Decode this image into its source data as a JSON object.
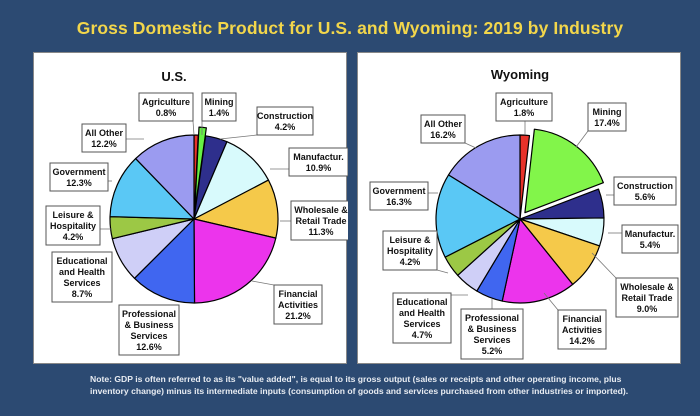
{
  "title": "Gross Domestic Product for U.S. and Wyoming: 2019 by Industry",
  "note_lines": [
    "Note: GDP is often referred to as its \"value added\", is equal to its gross output (sales or receipts and other operating income, plus",
    "inventory change) minus its intermediate inputs (consumption of goods and services purchased from other industries or imported)."
  ],
  "chart_data": [
    {
      "type": "pie",
      "title": "U.S.",
      "unit": "%",
      "slices": [
        {
          "label": [
            "Agriculture"
          ],
          "value": 0.8,
          "value_label": "0.8%",
          "color": "#e8322a"
        },
        {
          "label": [
            "Mining"
          ],
          "value": 1.4,
          "value_label": "1.4%",
          "color": "#66f045",
          "exploded": true
        },
        {
          "label": [
            "Construction"
          ],
          "value": 4.2,
          "value_label": "4.2%",
          "color": "#2e2f8c"
        },
        {
          "label": [
            "Manufactur."
          ],
          "value": 10.9,
          "value_label": "10.9%",
          "color": "#d8fafc"
        },
        {
          "label": [
            "Wholesale &",
            "Retail Trade"
          ],
          "value": 11.3,
          "value_label": "11.3%",
          "color": "#f5c94a"
        },
        {
          "label": [
            "Financial",
            "Activities"
          ],
          "value": 21.2,
          "value_label": "21.2%",
          "color": "#ec34ec"
        },
        {
          "label": [
            "Professional",
            "& Business",
            "Services"
          ],
          "value": 12.6,
          "value_label": "12.6%",
          "color": "#4066f0"
        },
        {
          "label": [
            "Educational",
            "and Health",
            "Services"
          ],
          "value": 8.7,
          "value_label": "8.7%",
          "color": "#cfcff7"
        },
        {
          "label": [
            "Leisure &",
            "Hospitality"
          ],
          "value": 4.2,
          "value_label": "4.2%",
          "color": "#9cc845"
        },
        {
          "label": [
            "Government"
          ],
          "value": 12.3,
          "value_label": "12.3%",
          "color": "#5ac8f5"
        },
        {
          "label": [
            "All Other"
          ],
          "value": 12.2,
          "value_label": "12.2%",
          "color": "#9b9bf0"
        }
      ]
    },
    {
      "type": "pie",
      "title": "Wyoming",
      "unit": "%",
      "slices": [
        {
          "label": [
            "Agriculture"
          ],
          "value": 1.8,
          "value_label": "1.8%",
          "color": "#e8322a"
        },
        {
          "label": [
            "Mining"
          ],
          "value": 17.4,
          "value_label": "17.4%",
          "color": "#82f54a",
          "exploded": true
        },
        {
          "label": [
            "Construction"
          ],
          "value": 5.6,
          "value_label": "5.6%",
          "color": "#2e2f8c"
        },
        {
          "label": [
            "Manufactur."
          ],
          "value": 5.4,
          "value_label": "5.4%",
          "color": "#d8fafc"
        },
        {
          "label": [
            "Wholesale &",
            "Retail Trade"
          ],
          "value": 9.0,
          "value_label": "9.0%",
          "color": "#f5c94a"
        },
        {
          "label": [
            "Financial",
            "Activities"
          ],
          "value": 14.2,
          "value_label": "14.2%",
          "color": "#ec34ec"
        },
        {
          "label": [
            "Professional",
            "& Business",
            "Services"
          ],
          "value": 5.2,
          "value_label": "5.2%",
          "color": "#4066f0"
        },
        {
          "label": [
            "Educational",
            "and Health",
            "Services"
          ],
          "value": 4.7,
          "value_label": "4.7%",
          "color": "#cfcff7"
        },
        {
          "label": [
            "Leisure &",
            "Hospitality"
          ],
          "value": 4.2,
          "value_label": "4.2%",
          "color": "#9cc845"
        },
        {
          "label": [
            "Government"
          ],
          "value": 16.3,
          "value_label": "16.3%",
          "color": "#5ac8f5"
        },
        {
          "label": [
            "All Other"
          ],
          "value": 16.2,
          "value_label": "16.2%",
          "color": "#9b9bf0"
        }
      ]
    }
  ]
}
